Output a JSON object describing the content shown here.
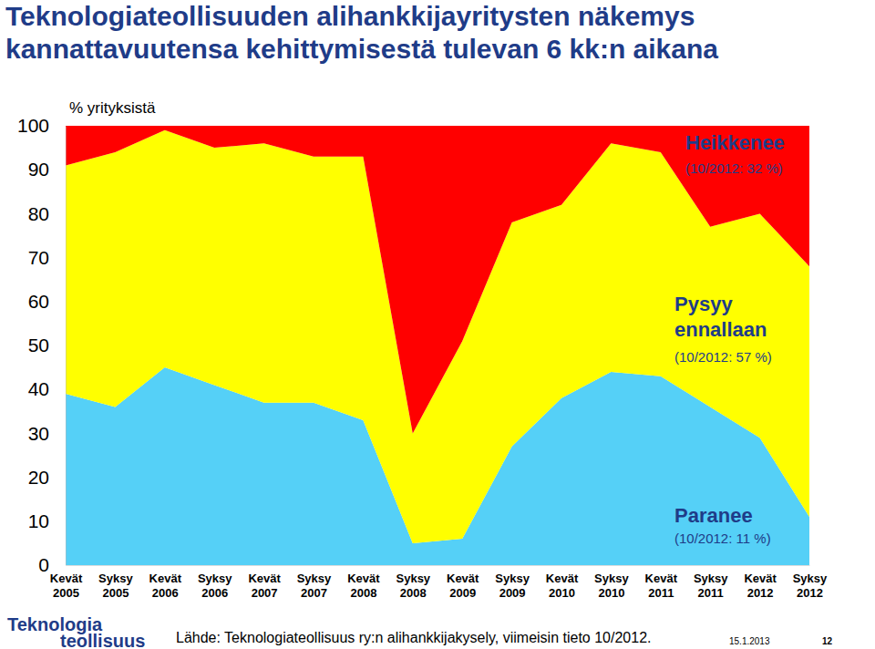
{
  "chart_data": {
    "type": "area",
    "stacked": true,
    "title": "Teknologiateollisuuden alihankkijayritysten näkemys kannattavuutensa kehittymisestä tulevan 6 kk:n aikana",
    "y_label": "% yrityksistä",
    "categories": [
      "Kevät 2005",
      "Syksy 2005",
      "Kevät 2006",
      "Syksy 2006",
      "Kevät 2007",
      "Syksy 2007",
      "Kevät 2008",
      "Syksy 2008",
      "Kevät 2009",
      "Syksy 2009",
      "Kevät 2010",
      "Syksy 2010",
      "Kevät 2011",
      "Syksy 2011",
      "Kevät 2012",
      "Syksy 2012"
    ],
    "series": [
      {
        "name": "Paranee",
        "color": "#55d0f7",
        "note": "(10/2012: 11 %)",
        "values": [
          39,
          36,
          45,
          41,
          37,
          37,
          33,
          5,
          6,
          27,
          38,
          44,
          43,
          36,
          29,
          11
        ]
      },
      {
        "name": "Pysyy ennallaan",
        "color": "#ffff00",
        "note": "(10/2012: 57 %)",
        "values": [
          52,
          58,
          54,
          54,
          59,
          56,
          60,
          25,
          45,
          51,
          44,
          52,
          51,
          41,
          51,
          57
        ]
      },
      {
        "name": "Heikkenee",
        "color": "#ff0000",
        "note": "(10/2012: 32 %)",
        "values": [
          9,
          6,
          1,
          5,
          4,
          7,
          7,
          70,
          49,
          22,
          18,
          4,
          6,
          23,
          20,
          32
        ]
      }
    ],
    "ylim": [
      0,
      100
    ],
    "yticks": [
      0,
      10,
      20,
      30,
      40,
      50,
      60,
      70,
      80,
      90,
      100
    ],
    "grid": false,
    "source": "Lähde: Teknologiateollisuus ry:n alihankkijakysely, viimeisin tieto 10/2012.",
    "date": "15.1.2013",
    "page": "12",
    "logo": [
      "Teknologia",
      "teollisuus"
    ]
  }
}
